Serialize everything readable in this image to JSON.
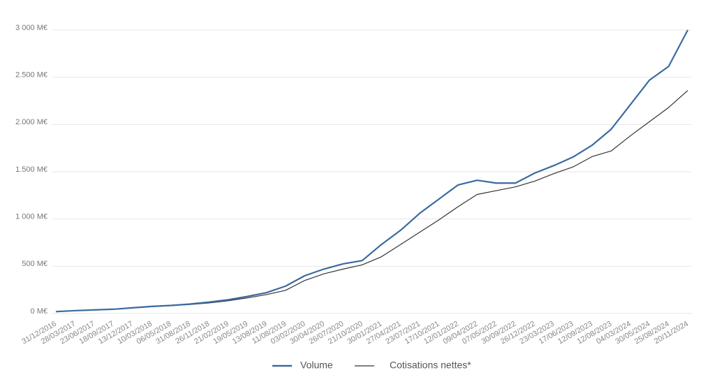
{
  "chart_data": {
    "type": "line",
    "x": [
      "31/12/2016",
      "28/03/2017",
      "23/06/2017",
      "18/09/2017",
      "13/12/2017",
      "10/03/2018",
      "06/05/2018",
      "31/08/2018",
      "26/11/2018",
      "21/02/2019",
      "19/05/2019",
      "13/08/2019",
      "11/08/2019",
      "03/02/2020",
      "30/04/2020",
      "26/07/2020",
      "21/10/2020",
      "30/01/2021",
      "27/04/2021",
      "23/07/2021",
      "17/10/2021",
      "12/01/2022",
      "09/04/2022",
      "07/05/2022",
      "30/09/2022",
      "26/12/2022",
      "23/03/2023",
      "17/06/2023",
      "12/09/2023",
      "12/08/2023",
      "04/03/2024",
      "30/05/2024",
      "25/08/2024",
      "20/11/2024"
    ],
    "series": [
      {
        "name": "Volume",
        "color": "#3b6aa0",
        "values": [
          20,
          30,
          38,
          45,
          60,
          75,
          85,
          100,
          120,
          145,
          180,
          220,
          290,
          400,
          470,
          525,
          560,
          730,
          880,
          1060,
          1210,
          1360,
          1410,
          1380,
          1380,
          1485,
          1565,
          1655,
          1780,
          1950,
          2210,
          2470,
          2615,
          3000
        ]
      },
      {
        "name": "Cotisations nettes*",
        "color": "#333333",
        "values": [
          20,
          30,
          38,
          45,
          58,
          72,
          82,
          95,
          112,
          135,
          165,
          200,
          245,
          350,
          420,
          470,
          515,
          600,
          730,
          860,
          990,
          1130,
          1260,
          1300,
          1340,
          1400,
          1480,
          1550,
          1660,
          1720,
          1880,
          2030,
          2180,
          2360
        ]
      }
    ],
    "ylim": [
      0,
      3000
    ],
    "yticks": [
      {
        "value": 0,
        "label": "0 M€"
      },
      {
        "value": 500,
        "label": "500 M€"
      },
      {
        "value": 1000,
        "label": "1 000 M€"
      },
      {
        "value": 1500,
        "label": "1.500 M€"
      },
      {
        "value": 2000,
        "label": "2.000 M€"
      },
      {
        "value": 2500,
        "label": "2.500 M€"
      },
      {
        "value": 3000,
        "label": "3 000 M€"
      }
    ],
    "grid": true
  }
}
